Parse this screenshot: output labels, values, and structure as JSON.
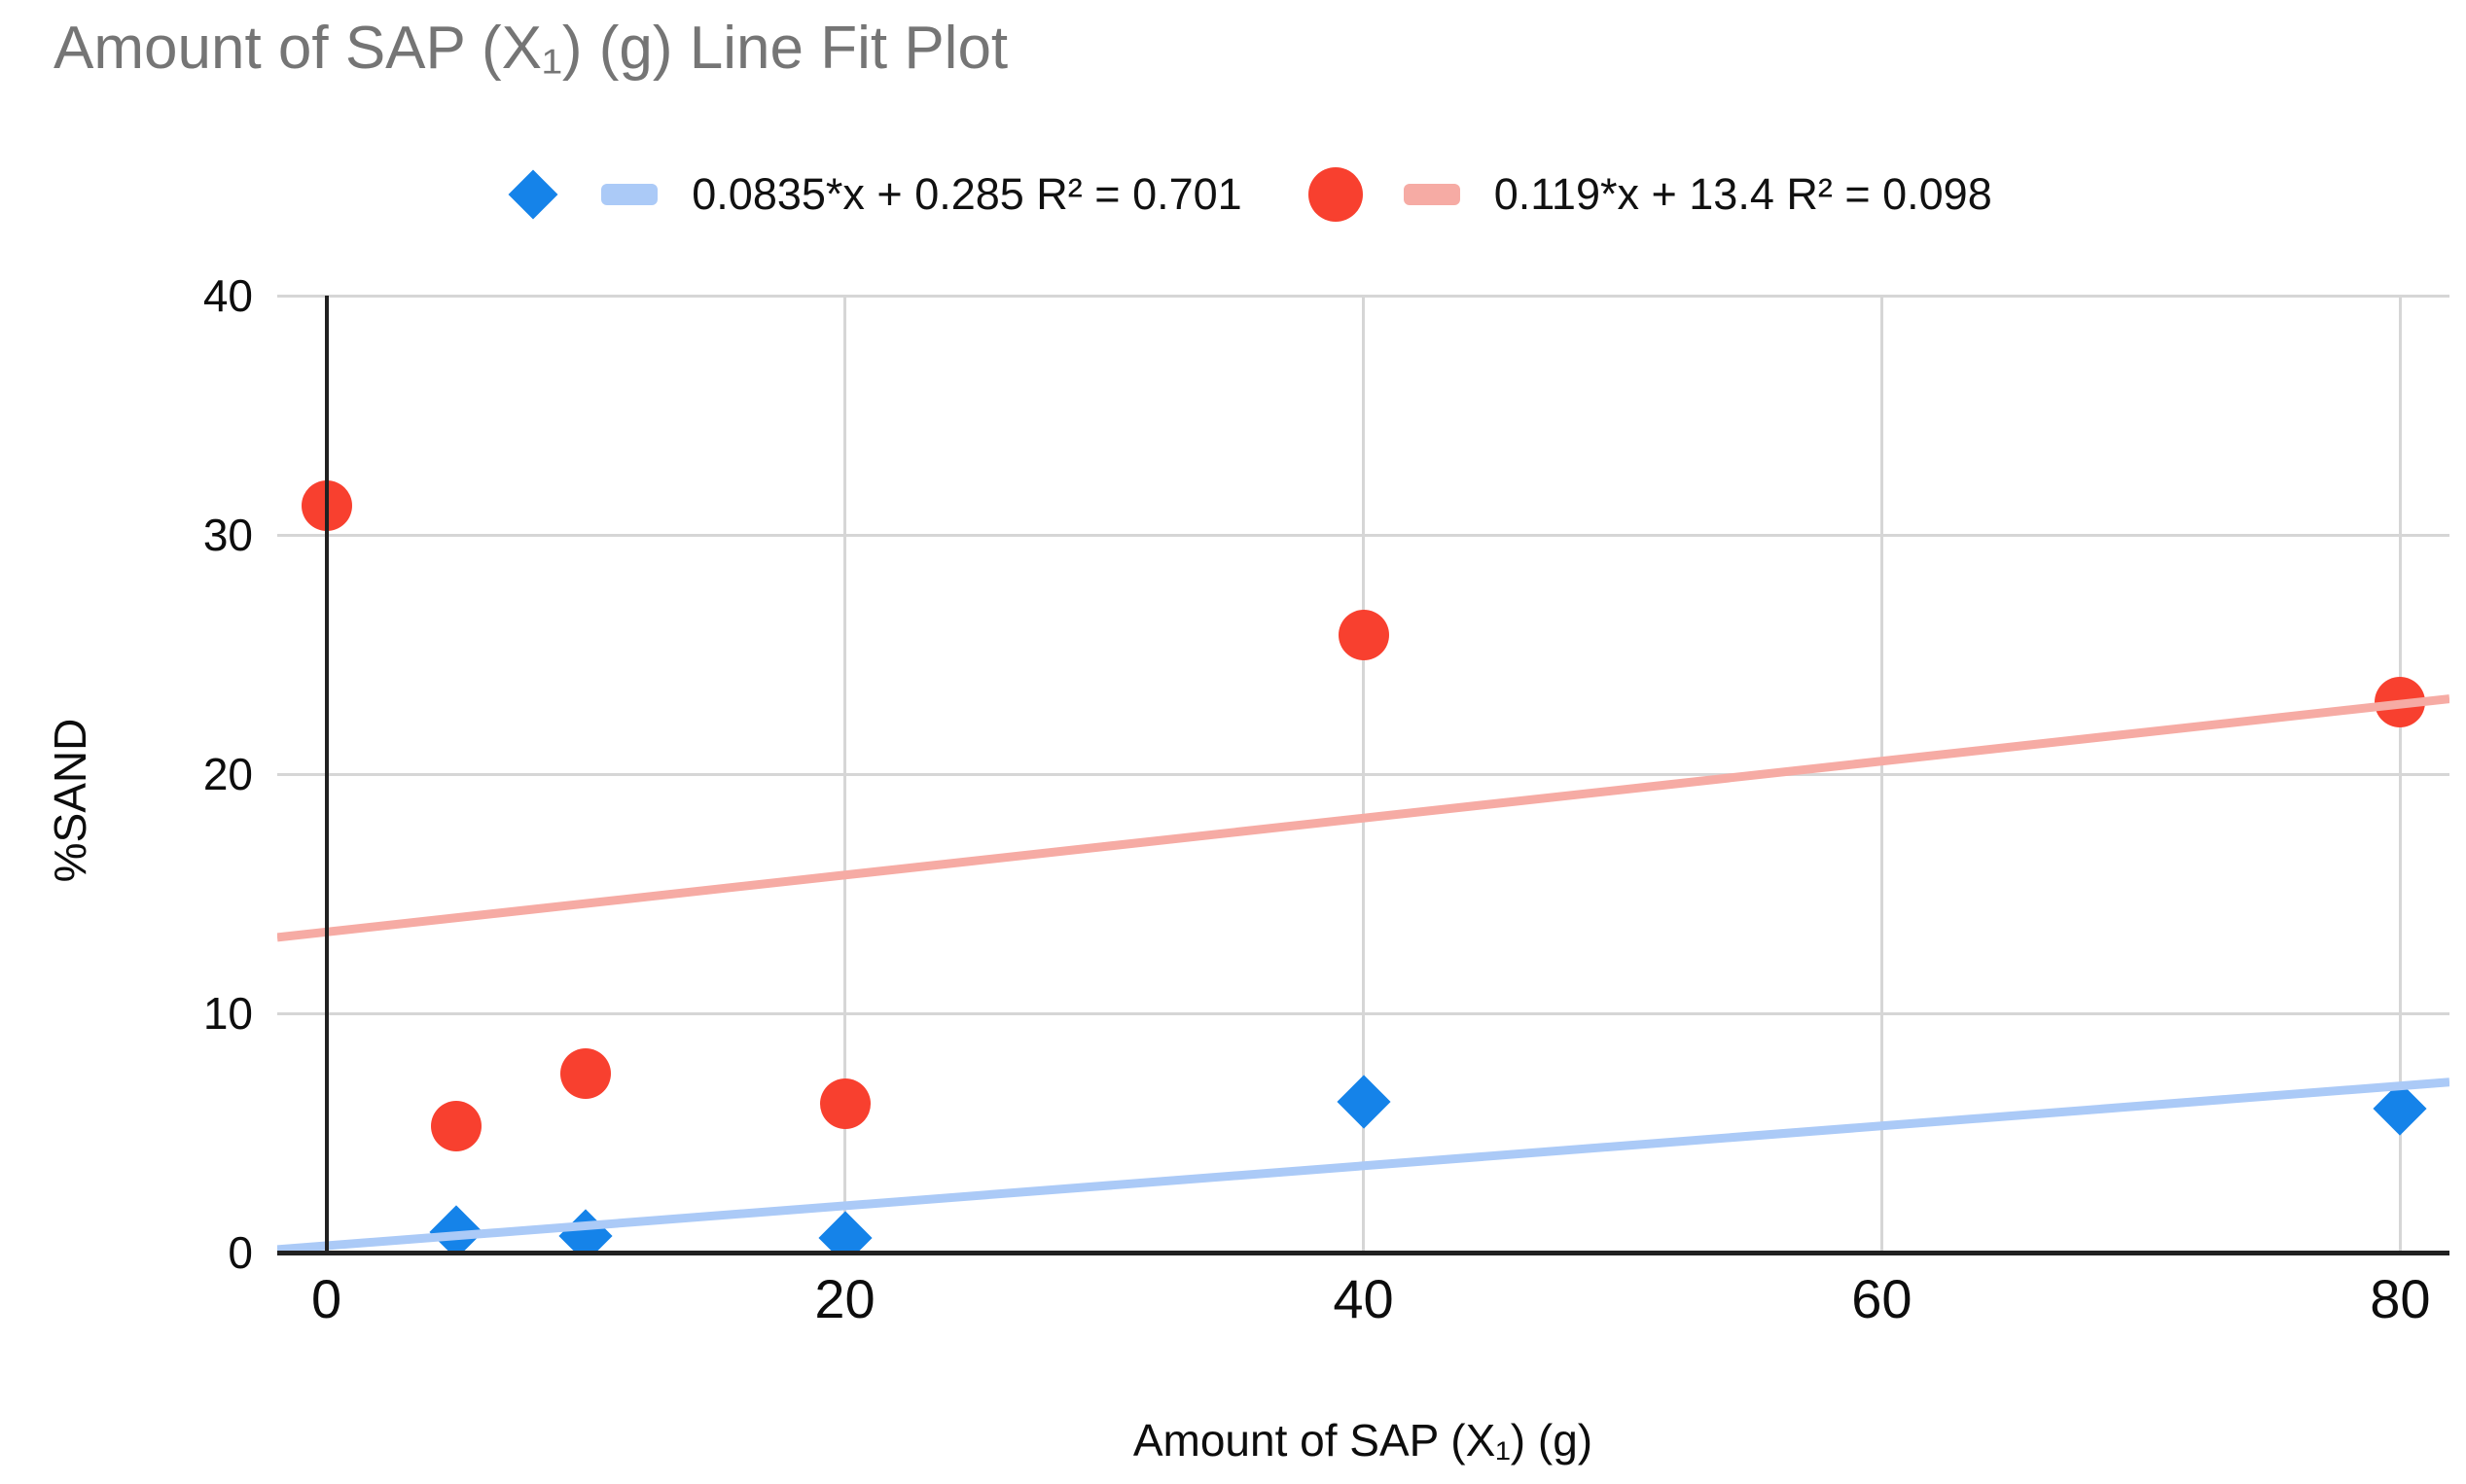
{
  "chart_data": {
    "type": "scatter",
    "title": "Amount of SAP (X₁) (g) Line Fit Plot",
    "title_color": "#757575",
    "xlabel": "Amount of SAP (X₁) (g)",
    "ylabel": "%SAND",
    "xlim": [
      -1.9,
      81.9
    ],
    "ylim": [
      0,
      40
    ],
    "x_ticks": [
      0,
      20,
      40,
      60,
      80
    ],
    "y_ticks": [
      0,
      10,
      20,
      30,
      40
    ],
    "grid": true,
    "legend_position": "top-center",
    "gridline_color": "#d6d6d6",
    "axis_color": "#212121",
    "series": [
      {
        "name": "0.0835*x + 0.285 R² = 0.701",
        "marker": "diamond",
        "color": "#1583e9",
        "points": [
          [
            5,
            0.85
          ],
          [
            10,
            0.7
          ],
          [
            20,
            0.6
          ],
          [
            40,
            6.3
          ],
          [
            80,
            6.0
          ]
        ],
        "trendline": {
          "slope": 0.0835,
          "intercept": 0.285,
          "r2": 0.701,
          "color": "#abcaf7"
        }
      },
      {
        "name": "0.119*x + 13.4 R² = 0.098",
        "marker": "circle",
        "color": "#f8402f",
        "points": [
          [
            0,
            31.2
          ],
          [
            5,
            5.3
          ],
          [
            10,
            7.5
          ],
          [
            20,
            6.2
          ],
          [
            40,
            25.8
          ],
          [
            80,
            23.0
          ]
        ],
        "trendline": {
          "slope": 0.119,
          "intercept": 13.4,
          "r2": 0.098,
          "color": "#f6aba4"
        }
      }
    ]
  }
}
